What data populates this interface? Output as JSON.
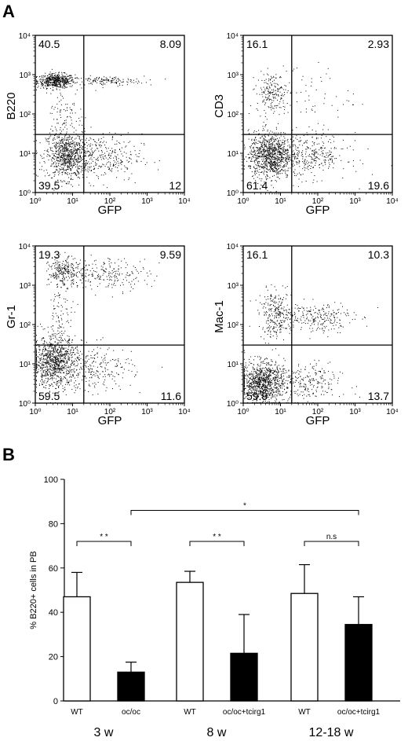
{
  "panel_a": {
    "letter": "A"
  },
  "panel_b": {
    "letter": "B"
  },
  "chart_data": [
    {
      "type": "scatter",
      "xlabel": "GFP",
      "ylabel": "B220",
      "scale": "log",
      "xlim": [
        1,
        10000
      ],
      "ylim": [
        1,
        10000
      ],
      "xticks": [
        "10⁰",
        "10¹",
        "10²",
        "10³",
        "10⁴"
      ],
      "yticks": [
        "10⁰",
        "10¹",
        "10²",
        "10³",
        "10⁴"
      ],
      "gate": {
        "x": 20,
        "y": 30
      },
      "quadrants": {
        "upper_left": "40.5",
        "upper_right": "8.09",
        "lower_left": "39.5",
        "lower_right": "12"
      }
    },
    {
      "type": "scatter",
      "xlabel": "GFP",
      "ylabel": "CD3",
      "scale": "log",
      "xlim": [
        1,
        10000
      ],
      "ylim": [
        1,
        10000
      ],
      "xticks": [
        "10⁰",
        "10¹",
        "10²",
        "10³",
        "10⁴"
      ],
      "yticks": [
        "10⁰",
        "10¹",
        "10²",
        "10³",
        "10⁴"
      ],
      "gate": {
        "x": 20,
        "y": 30
      },
      "quadrants": {
        "upper_left": "16.1",
        "upper_right": "2.93",
        "lower_left": "61.4",
        "lower_right": "19.6"
      }
    },
    {
      "type": "scatter",
      "xlabel": "GFP",
      "ylabel": "Gr-1",
      "scale": "log",
      "xlim": [
        1,
        10000
      ],
      "ylim": [
        1,
        10000
      ],
      "xticks": [
        "10⁰",
        "10¹",
        "10²",
        "10³",
        "10⁴"
      ],
      "yticks": [
        "10⁰",
        "10¹",
        "10²",
        "10³",
        "10⁴"
      ],
      "gate": {
        "x": 20,
        "y": 30
      },
      "quadrants": {
        "upper_left": "19.3",
        "upper_right": "9.59",
        "lower_left": "59.5",
        "lower_right": "11.6"
      }
    },
    {
      "type": "scatter",
      "xlabel": "GFP",
      "ylabel": "Mac-1",
      "scale": "log",
      "xlim": [
        1,
        10000
      ],
      "ylim": [
        1,
        10000
      ],
      "xticks": [
        "10⁰",
        "10¹",
        "10²",
        "10³",
        "10⁴"
      ],
      "yticks": [
        "10⁰",
        "10¹",
        "10²",
        "10³",
        "10⁴"
      ],
      "gate": {
        "x": 20,
        "y": 30
      },
      "quadrants": {
        "upper_left": "16.1",
        "upper_right": "10.3",
        "lower_left": "59.9",
        "lower_right": "13.7"
      }
    },
    {
      "type": "bar",
      "ylabel": "% B220+ cells in PB",
      "ylim": [
        0,
        100
      ],
      "yticks": [
        0,
        20,
        40,
        60,
        80,
        100
      ],
      "error_bars": "one-sided, upward",
      "groups": [
        {
          "label": "3 w",
          "bars": [
            {
              "label": "WT",
              "value": 47,
              "error": 11,
              "fill": "white"
            },
            {
              "label": "oc/oc",
              "value": 13,
              "error": 4.5,
              "fill": "black"
            }
          ]
        },
        {
          "label": "8 w",
          "bars": [
            {
              "label": "WT",
              "value": 53.5,
              "error": 5,
              "fill": "white"
            },
            {
              "label": "oc/oc+tcirg1",
              "value": 21.5,
              "error": 17.5,
              "fill": "black"
            }
          ]
        },
        {
          "label": "12-18 w",
          "bars": [
            {
              "label": "WT",
              "value": 48.5,
              "error": 13,
              "fill": "white"
            },
            {
              "label": "oc/oc+tcirg1",
              "value": 34.5,
              "error": 12.5,
              "fill": "black"
            }
          ]
        }
      ],
      "significance": [
        {
          "label": "* *",
          "from": [
            0,
            0
          ],
          "to": [
            0,
            1
          ],
          "y": 72
        },
        {
          "label": "* *",
          "from": [
            1,
            0
          ],
          "to": [
            1,
            1
          ],
          "y": 72
        },
        {
          "label": "n.s",
          "from": [
            2,
            0
          ],
          "to": [
            2,
            1
          ],
          "y": 72
        },
        {
          "label": "*",
          "from": [
            0,
            1
          ],
          "to": [
            2,
            1
          ],
          "y": 86
        }
      ]
    }
  ]
}
